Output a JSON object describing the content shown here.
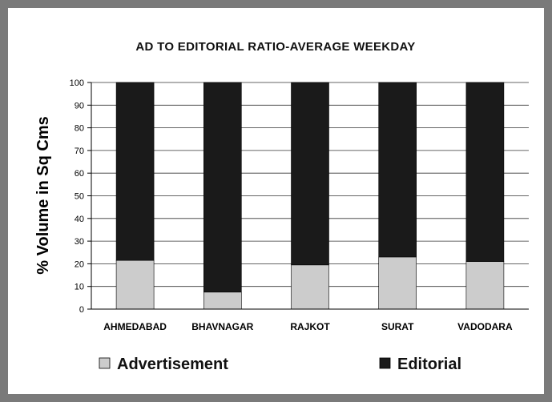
{
  "chart_data": {
    "type": "bar",
    "stacked": true,
    "title": "AD TO EDITORIAL RATIO-AVERAGE WEEKDAY",
    "ylabel": "% Volume in Sq Cms",
    "xlabel": "",
    "ylim": [
      0,
      100
    ],
    "yticks": [
      "0",
      "10",
      "20",
      "30",
      "40",
      "50",
      "60",
      "70",
      "80",
      "90",
      "100"
    ],
    "grid": true,
    "legend_position": "bottom",
    "categories": [
      "AHMEDABAD",
      "BHAVNAGAR",
      "RAJKOT",
      "SURAT",
      "VADODARA"
    ],
    "series": [
      {
        "name": "Advertisement",
        "color": "#cccccc",
        "values": [
          21.5,
          7.5,
          19.5,
          23,
          21
        ]
      },
      {
        "name": "Editorial",
        "color": "#1a1a1a",
        "values": [
          78.5,
          92.5,
          80.5,
          77,
          79
        ]
      }
    ]
  }
}
